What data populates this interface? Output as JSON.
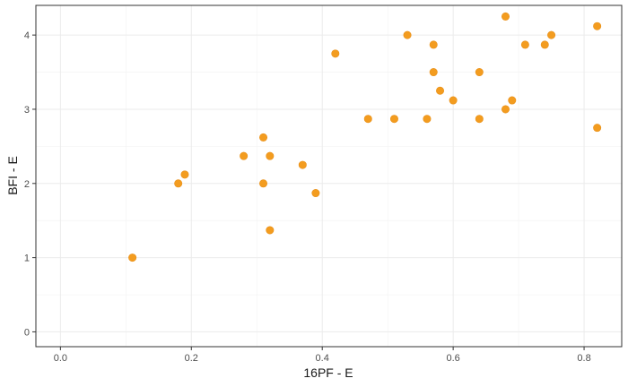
{
  "chart_data": {
    "type": "scatter",
    "title": "",
    "xlabel": "16PF - E",
    "ylabel": "BFI - E",
    "xlim": [
      -0.0375,
      0.8575
    ],
    "ylim": [
      -0.2,
      4.4
    ],
    "x_ticks": [
      0.0,
      0.2,
      0.4,
      0.6,
      0.8
    ],
    "x_tick_labels": [
      "0.0",
      "0.2",
      "0.4",
      "0.6",
      "0.8"
    ],
    "y_ticks": [
      0,
      1,
      2,
      3,
      4
    ],
    "y_tick_labels": [
      "0",
      "1",
      "2",
      "3",
      "4"
    ],
    "grid": true,
    "point_color": "#F39C1F",
    "points": [
      {
        "x": 0.11,
        "y": 1.0
      },
      {
        "x": 0.18,
        "y": 2.0
      },
      {
        "x": 0.19,
        "y": 2.12
      },
      {
        "x": 0.28,
        "y": 2.37
      },
      {
        "x": 0.31,
        "y": 2.62
      },
      {
        "x": 0.31,
        "y": 2.0
      },
      {
        "x": 0.32,
        "y": 2.37
      },
      {
        "x": 0.32,
        "y": 1.37
      },
      {
        "x": 0.37,
        "y": 2.25
      },
      {
        "x": 0.39,
        "y": 1.87
      },
      {
        "x": 0.42,
        "y": 3.75
      },
      {
        "x": 0.47,
        "y": 2.87
      },
      {
        "x": 0.51,
        "y": 2.87
      },
      {
        "x": 0.53,
        "y": 4.0
      },
      {
        "x": 0.56,
        "y": 2.87
      },
      {
        "x": 0.57,
        "y": 3.87
      },
      {
        "x": 0.57,
        "y": 3.5
      },
      {
        "x": 0.58,
        "y": 3.25
      },
      {
        "x": 0.6,
        "y": 3.12
      },
      {
        "x": 0.64,
        "y": 3.5
      },
      {
        "x": 0.64,
        "y": 2.87
      },
      {
        "x": 0.68,
        "y": 4.25
      },
      {
        "x": 0.68,
        "y": 3.0
      },
      {
        "x": 0.69,
        "y": 3.12
      },
      {
        "x": 0.71,
        "y": 3.87
      },
      {
        "x": 0.74,
        "y": 3.87
      },
      {
        "x": 0.75,
        "y": 4.0
      },
      {
        "x": 0.82,
        "y": 4.12
      },
      {
        "x": 0.82,
        "y": 2.75
      }
    ]
  }
}
